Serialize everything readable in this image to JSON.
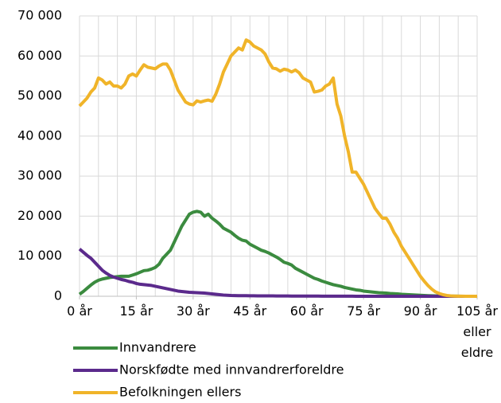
{
  "chart_data": {
    "type": "line",
    "x": [
      0,
      1,
      2,
      3,
      4,
      5,
      6,
      7,
      8,
      9,
      10,
      11,
      12,
      13,
      14,
      15,
      16,
      17,
      18,
      19,
      20,
      21,
      22,
      23,
      24,
      25,
      26,
      27,
      28,
      29,
      30,
      31,
      32,
      33,
      34,
      35,
      36,
      37,
      38,
      39,
      40,
      41,
      42,
      43,
      44,
      45,
      46,
      47,
      48,
      49,
      50,
      51,
      52,
      53,
      54,
      55,
      56,
      57,
      58,
      59,
      60,
      61,
      62,
      63,
      64,
      65,
      66,
      67,
      68,
      69,
      70,
      71,
      72,
      73,
      74,
      75,
      76,
      77,
      78,
      79,
      80,
      81,
      82,
      83,
      84,
      85,
      86,
      87,
      88,
      89,
      90,
      91,
      92,
      93,
      94,
      95,
      96,
      97,
      98,
      99,
      100,
      101,
      102,
      103,
      104,
      105
    ],
    "xlim": [
      0,
      105
    ],
    "xticks": [
      {
        "value": 0,
        "label": "0 år"
      },
      {
        "value": 15,
        "label": "15 år"
      },
      {
        "value": 30,
        "label": "30 år"
      },
      {
        "value": 45,
        "label": "45 år"
      },
      {
        "value": 60,
        "label": "60 år"
      },
      {
        "value": 75,
        "label": "75 år"
      },
      {
        "value": 90,
        "label": "90 år"
      },
      {
        "value": 105,
        "label": "105 år eller eldre"
      }
    ],
    "ylim": [
      0,
      70000
    ],
    "yticks": [
      0,
      {
        "value": 10000,
        "label": "10 000"
      },
      {
        "value": 20000,
        "label": "20 000"
      },
      {
        "value": 30000,
        "label": "30 000"
      },
      {
        "value": 40000,
        "label": "40 000"
      },
      {
        "value": 50000,
        "label": "50 000"
      },
      {
        "value": 60000,
        "label": "60 000"
      },
      {
        "value": 70000,
        "label": "70 000"
      }
    ],
    "grid": true,
    "legend": "bottom",
    "series": [
      {
        "name": "Innvandrere",
        "color": "#3b8b3f",
        "values": [
          500,
          1200,
          2000,
          2800,
          3500,
          4000,
          4300,
          4500,
          4700,
          4800,
          4900,
          5000,
          5000,
          5000,
          5300,
          5600,
          6000,
          6400,
          6500,
          6800,
          7200,
          8000,
          9500,
          10500,
          11500,
          13500,
          15500,
          17500,
          19000,
          20500,
          21000,
          21200,
          21000,
          20000,
          20500,
          19500,
          18800,
          18000,
          17000,
          16500,
          16000,
          15200,
          14500,
          14000,
          13800,
          13000,
          12500,
          12000,
          11500,
          11200,
          10800,
          10300,
          9800,
          9200,
          8500,
          8200,
          7800,
          7000,
          6500,
          6000,
          5500,
          5000,
          4500,
          4200,
          3800,
          3500,
          3200,
          2900,
          2700,
          2500,
          2200,
          2000,
          1800,
          1600,
          1500,
          1300,
          1200,
          1100,
          1000,
          900,
          850,
          800,
          700,
          650,
          600,
          500,
          450,
          400,
          350,
          300,
          250,
          200,
          160,
          130,
          100,
          80,
          60,
          40,
          30,
          20,
          15,
          10,
          5,
          3,
          2,
          2
        ]
      },
      {
        "name": "Norskfødte med innvandrerforeldre",
        "color": "#5b2a8c",
        "values": [
          11800,
          11000,
          10200,
          9500,
          8500,
          7500,
          6500,
          5800,
          5200,
          4800,
          4500,
          4200,
          4000,
          3700,
          3500,
          3200,
          3000,
          2900,
          2800,
          2700,
          2500,
          2300,
          2100,
          1900,
          1700,
          1500,
          1300,
          1200,
          1100,
          1000,
          950,
          900,
          850,
          800,
          700,
          600,
          500,
          400,
          300,
          250,
          200,
          180,
          160,
          150,
          140,
          130,
          120,
          110,
          100,
          100,
          90,
          90,
          80,
          80,
          70,
          70,
          60,
          60,
          50,
          50,
          50,
          40,
          40,
          40,
          30,
          30,
          30,
          30,
          20,
          20,
          20,
          20,
          20,
          10,
          10,
          10,
          10,
          10,
          10,
          10,
          5,
          5,
          5,
          5,
          5,
          5,
          5,
          5,
          5,
          5,
          3,
          3,
          3,
          3,
          3,
          2,
          2,
          2,
          2,
          2,
          1,
          1,
          1,
          1,
          1,
          1
        ]
      },
      {
        "name": "Befolkningen ellers",
        "color": "#f0b429",
        "values": [
          47500,
          48500,
          49500,
          51000,
          52000,
          54500,
          54000,
          53000,
          53500,
          52500,
          52500,
          52000,
          53000,
          55000,
          55500,
          55000,
          56500,
          57800,
          57200,
          57000,
          56800,
          57500,
          58000,
          58000,
          56500,
          54000,
          51500,
          50000,
          48500,
          48000,
          47800,
          48800,
          48500,
          48800,
          49000,
          48700,
          50500,
          53000,
          56000,
          58000,
          60000,
          61000,
          62000,
          61500,
          64000,
          63500,
          62500,
          62000,
          61500,
          60500,
          58500,
          57000,
          56800,
          56200,
          56700,
          56500,
          56000,
          56500,
          55800,
          54500,
          54000,
          53500,
          51000,
          51200,
          51500,
          52500,
          53000,
          54500,
          48000,
          45000,
          40000,
          36000,
          31000,
          31000,
          29500,
          28000,
          26000,
          24000,
          22000,
          20700,
          19500,
          19500,
          18000,
          16000,
          14500,
          12500,
          11000,
          9500,
          8000,
          6500,
          5000,
          3800,
          2700,
          1800,
          1100,
          700,
          400,
          200,
          100,
          60,
          30,
          15,
          8,
          4,
          2,
          3
        ]
      }
    ]
  }
}
